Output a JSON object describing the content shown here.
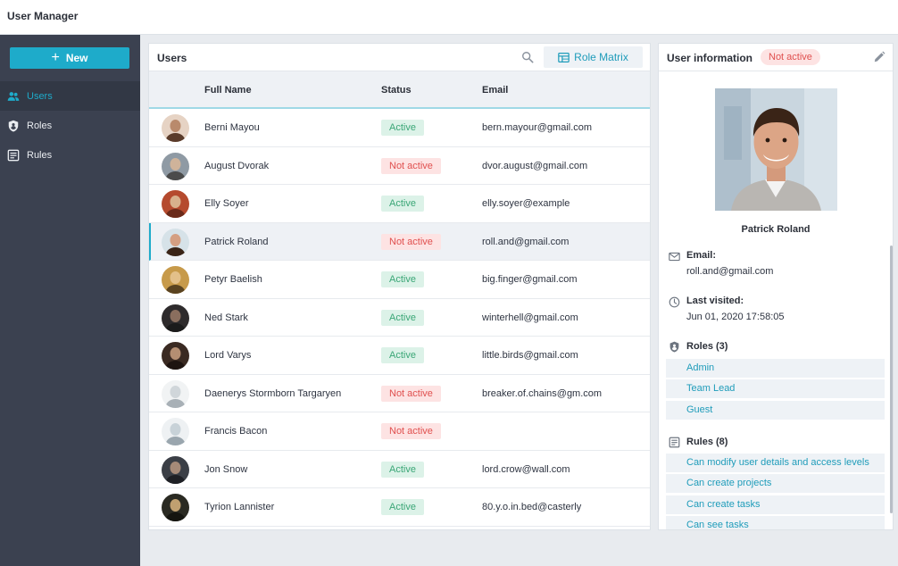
{
  "app": {
    "title": "User Manager"
  },
  "sidebar": {
    "new_label": "New",
    "items": [
      {
        "label": "Users",
        "icon": "users-icon",
        "active": true
      },
      {
        "label": "Roles",
        "icon": "shield-icon",
        "active": false
      },
      {
        "label": "Rules",
        "icon": "rules-icon",
        "active": false
      }
    ]
  },
  "users_panel": {
    "title": "Users",
    "role_matrix_label": "Role Matrix",
    "columns": {
      "name": "Full Name",
      "status": "Status",
      "email": "Email"
    },
    "rows": [
      {
        "name": "Berni Mayou",
        "status": "Active",
        "email": "bern.mayour@gmail.com"
      },
      {
        "name": "August Dvorak",
        "status": "Not active",
        "email": "dvor.august@gmail.com"
      },
      {
        "name": "Elly Soyer",
        "status": "Active",
        "email": "elly.soyer@example"
      },
      {
        "name": "Patrick Roland",
        "status": "Not active",
        "email": "roll.and@gmail.com",
        "selected": true
      },
      {
        "name": "Petyr Baelish",
        "status": "Active",
        "email": "big.finger@gmail.com"
      },
      {
        "name": "Ned Stark",
        "status": "Active",
        "email": "winterhell@gmail.com"
      },
      {
        "name": "Lord Varys",
        "status": "Active",
        "email": "little.birds@gmail.com"
      },
      {
        "name": "Daenerys Stormborn Targaryen",
        "status": "Not active",
        "email": "breaker.of.chains@gm.com"
      },
      {
        "name": "Francis Bacon",
        "status": "Not active",
        "email": ""
      },
      {
        "name": "Jon Snow",
        "status": "Active",
        "email": "lord.crow@wall.com"
      },
      {
        "name": "Tyrion Lannister",
        "status": "Active",
        "email": "80.y.o.in.bed@casterly"
      }
    ]
  },
  "info_panel": {
    "title": "User information",
    "status_badge": "Not active",
    "user_name": "Patrick Roland",
    "email_label": "Email:",
    "email_value": "roll.and@gmail.com",
    "last_visited_label": "Last visited:",
    "last_visited_value": "Jun 01, 2020 17:58:05",
    "roles_label": "Roles (3)",
    "roles": [
      "Admin",
      "Team Lead",
      "Guest"
    ],
    "rules_label": "Rules (8)",
    "rules": [
      "Can modify user details and access levels",
      "Can create projects",
      "Can create tasks",
      "Can see tasks"
    ]
  },
  "colors": {
    "accent": "#1eabca",
    "sidebar_bg": "#3b4150",
    "active_badge_bg": "#dcf2e8",
    "active_badge_text": "#3aa676",
    "inactive_badge_bg": "#fde3e3",
    "inactive_badge_text": "#e0504f"
  }
}
